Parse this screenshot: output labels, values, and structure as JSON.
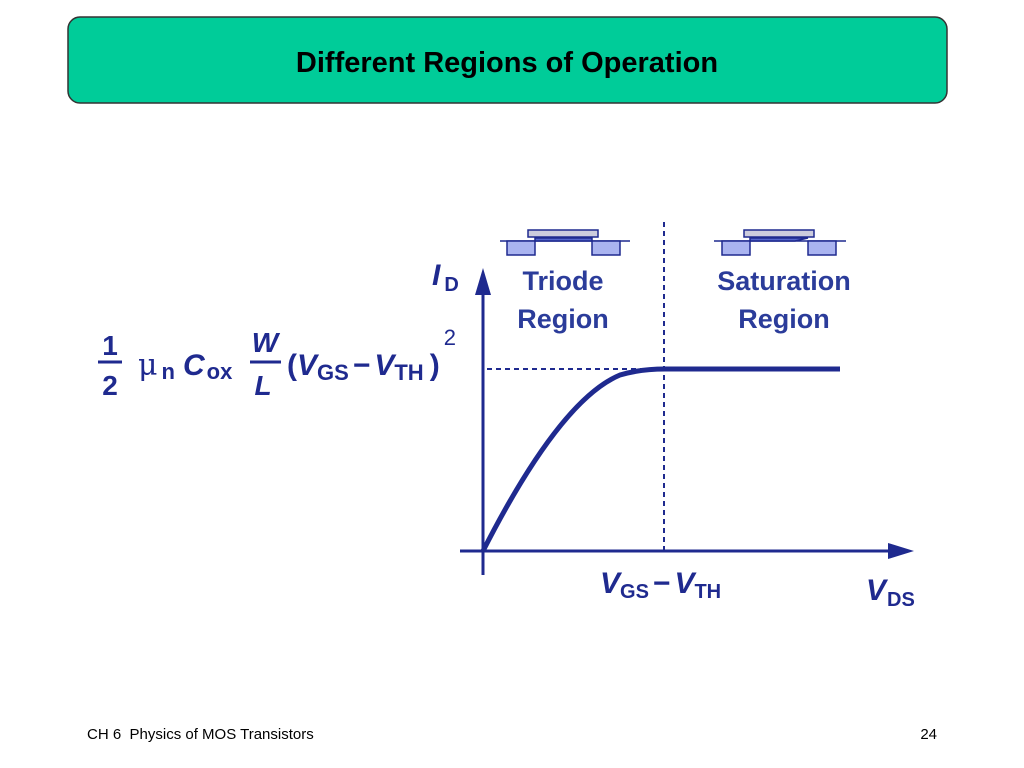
{
  "title": "Different Regions of Operation",
  "footer": {
    "left": "CH 6  Physics of MOS Transistors",
    "page": "24"
  },
  "diagram": {
    "y_axis": [
      "I",
      "D"
    ],
    "x_axis": [
      "V",
      "DS"
    ],
    "threshold_label": [
      "V",
      "GS",
      "−",
      "V",
      "TH"
    ],
    "regions": [
      [
        "Triode",
        "Region"
      ],
      [
        "Saturation",
        "Region"
      ]
    ],
    "saturation_current": {
      "fraction": [
        "1",
        "2"
      ],
      "factors": [
        "μ",
        "n",
        "C",
        "ox"
      ],
      "ratio": [
        "W",
        "L"
      ],
      "term": [
        "(",
        "V",
        "GS",
        "−",
        "V",
        "TH",
        ")",
        "2"
      ]
    }
  }
}
